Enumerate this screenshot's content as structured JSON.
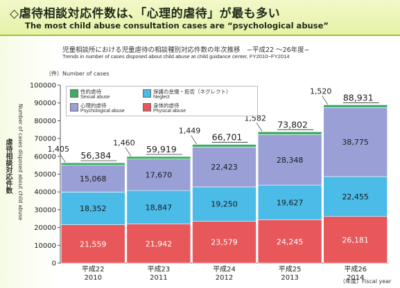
{
  "header": {
    "title_ja": "◇虐待相談対応件数は、「心理的虐待」が最も多い",
    "title_en": "The most child abuse consultation cases are “psychological abuse”"
  },
  "chart_data": {
    "type": "bar",
    "stacked": true,
    "title": "児童相談所における児童虐待の相談種別対応件数の年次推移　−平成22 〜26年度−",
    "subtitle": "Trends in number of cases disposed about child abuse at child guidance center, FY2010−FY2014",
    "y_unit_label": "（件）Number of cases",
    "ylabel_ja": "虐待相談対応件数",
    "ylabel_en": "Number of cases disposed about child abuse",
    "xlabel": "（年度）Fiscal year",
    "ylim": [
      0,
      100000
    ],
    "y_ticks": [
      "0",
      "10000",
      "20000",
      "30000",
      "40000",
      "50000",
      "60000",
      "70000",
      "80000",
      "90000",
      "100000"
    ],
    "categories": [
      {
        "ja": "平成22",
        "en": "2010"
      },
      {
        "ja": "平成23",
        "en": "2011"
      },
      {
        "ja": "平成24",
        "en": "2012"
      },
      {
        "ja": "平成25",
        "en": "2013"
      },
      {
        "ja": "平成26",
        "en": "2014"
      }
    ],
    "series": [
      {
        "name_ja": "身体的虐待",
        "name_en": "Physical abuse",
        "color": "#e8575a",
        "values": [
          21559,
          21942,
          23579,
          24245,
          26181
        ],
        "labels": [
          "21,559",
          "21,942",
          "23,579",
          "24,245",
          "26,181"
        ]
      },
      {
        "name_ja": "保護の怠慢・拒否（ネグレクト）",
        "name_en": "Neglect",
        "color": "#4bbbe8",
        "values": [
          18352,
          18847,
          19250,
          19627,
          22455
        ],
        "labels": [
          "18,352",
          "18,847",
          "19,250",
          "19,627",
          "22,455"
        ]
      },
      {
        "name_ja": "心理的虐待",
        "name_en": "Psychological abuse",
        "color": "#9aa0d6",
        "values": [
          15068,
          17670,
          22423,
          28348,
          38775
        ],
        "labels": [
          "15,068",
          "17,670",
          "22,423",
          "28,348",
          "38,775"
        ]
      },
      {
        "name_ja": "性的虐待",
        "name_en": "Sexual abuse",
        "color": "#3aae63",
        "values": [
          1405,
          1460,
          1449,
          1582,
          1520
        ],
        "labels": [
          "1,405",
          "1,460",
          "1,449",
          "1,582",
          "1,520"
        ]
      }
    ],
    "totals": [
      56384,
      59919,
      66701,
      73802,
      88931
    ],
    "total_labels": [
      "56,384",
      "59,919",
      "66,701",
      "73,802",
      "88,931"
    ],
    "legend": [
      {
        "name_ja": "性的虐待",
        "name_en": "Sexual abuse",
        "color": "#3aae63"
      },
      {
        "name_ja": "保護の怠慢・拒否（ネグレクト）",
        "name_en": "Neglect",
        "color": "#4bbbe8"
      },
      {
        "name_ja": "心理的虐待",
        "name_en": "Psychological abuse",
        "color": "#9aa0d6"
      },
      {
        "name_ja": "身体的虐待",
        "name_en": "Physical abuse",
        "color": "#e8575a"
      }
    ],
    "grid": false,
    "legend_position": "top-left"
  }
}
